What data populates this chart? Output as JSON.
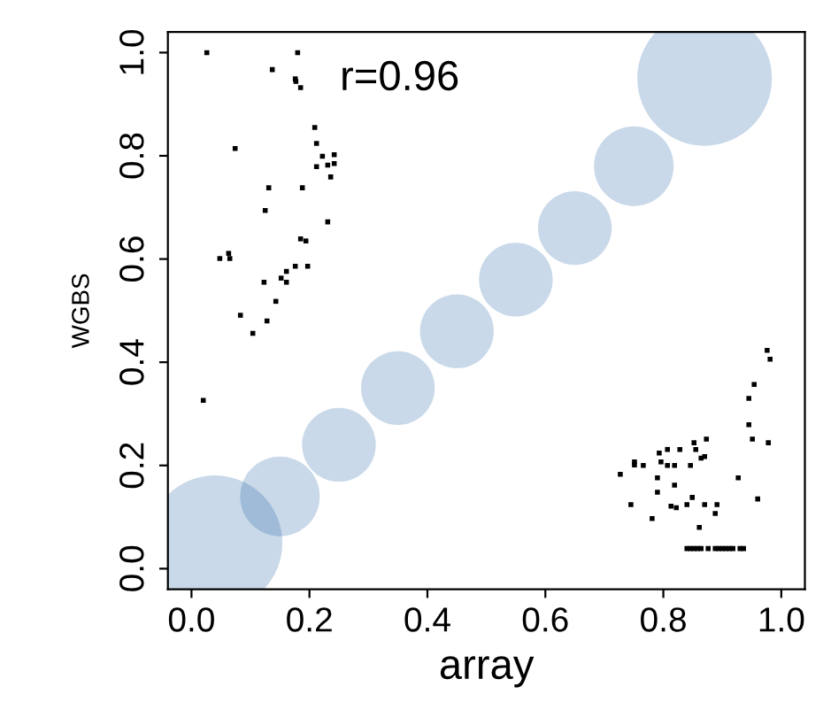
{
  "chart_data": {
    "type": "scatter",
    "xlabel": "array",
    "ylabel": "WGBS",
    "annotations": [
      "r=0.96"
    ],
    "xlim": [
      -0.04,
      1.04
    ],
    "ylim": [
      -0.04,
      1.04
    ],
    "xticks": [
      {
        "value": 0,
        "label": "0.0"
      },
      0.2,
      0.4,
      0.6,
      0.8,
      {
        "value": 1,
        "label": "1.0"
      }
    ],
    "yticks": [
      {
        "value": 0,
        "label": "0.0"
      },
      0.2,
      0.4,
      0.6,
      0.8,
      {
        "value": 1,
        "label": "1.0"
      }
    ],
    "grid": false,
    "series": [
      {
        "type": "bubble",
        "color": "#08519c",
        "x": [
          0.04,
          0.87,
          0.15,
          0.25,
          0.35,
          0.45,
          0.55,
          0.65,
          0.75
        ],
        "values": [
          0.05,
          0.95,
          0.14,
          0.24,
          0.35,
          0.46,
          0.56,
          0.66,
          0.78
        ],
        "sizes": [
          1,
          1,
          0.35,
          0.3,
          0.3,
          0.3,
          0.3,
          0.3,
          0.35
        ]
      },
      {
        "marker": "square",
        "color": "#000000",
        "x": [
          0.026,
          0.18,
          0.137,
          0.176,
          0.177,
          0.185,
          0.209,
          0.212,
          0.074,
          0.222,
          0.242,
          0.212,
          0.231,
          0.242,
          0.236,
          0.131,
          0.188,
          0.125,
          0.231,
          0.185,
          0.194,
          0.048,
          0.063,
          0.065,
          0.176,
          0.197,
          0.161,
          0.152,
          0.161,
          0.123,
          0.143,
          0.083,
          0.128,
          0.104,
          0.02,
          0.976,
          0.981,
          0.954,
          0.945,
          0.945,
          0.951,
          0.978,
          0.873,
          0.852,
          0.855,
          0.828,
          0.807,
          0.793,
          0.87,
          0.864,
          0.751,
          0.751,
          0.766,
          0.796,
          0.807,
          0.819,
          0.846,
          0.727,
          0.79,
          0.927,
          0.819,
          0.79,
          0.849,
          0.96,
          0.745,
          0.813,
          0.822,
          0.84,
          0.87,
          0.891,
          0.888,
          0.781,
          0.861,
          0.84,
          0.846,
          0.852,
          0.858,
          0.864,
          0.876,
          0.888,
          0.894,
          0.9,
          0.906,
          0.912,
          0.918,
          0.93,
          0.936
        ],
        "values": [
          1.0,
          1.0,
          0.967,
          0.949,
          0.944,
          0.932,
          0.855,
          0.824,
          0.814,
          0.799,
          0.802,
          0.779,
          0.782,
          0.785,
          0.759,
          0.738,
          0.738,
          0.694,
          0.672,
          0.639,
          0.635,
          0.601,
          0.611,
          0.601,
          0.586,
          0.586,
          0.576,
          0.563,
          0.555,
          0.555,
          0.518,
          0.491,
          0.48,
          0.456,
          0.326,
          0.423,
          0.406,
          0.357,
          0.33,
          0.279,
          0.251,
          0.244,
          0.251,
          0.244,
          0.231,
          0.231,
          0.231,
          0.224,
          0.217,
          0.214,
          0.207,
          0.201,
          0.2,
          0.207,
          0.2,
          0.2,
          0.2,
          0.183,
          0.176,
          0.176,
          0.162,
          0.148,
          0.138,
          0.135,
          0.124,
          0.121,
          0.118,
          0.124,
          0.124,
          0.124,
          0.107,
          0.097,
          0.08,
          0.039,
          0.039,
          0.039,
          0.039,
          0.039,
          0.039,
          0.039,
          0.039,
          0.039,
          0.039,
          0.039,
          0.039,
          0.039,
          0.039
        ]
      }
    ]
  }
}
